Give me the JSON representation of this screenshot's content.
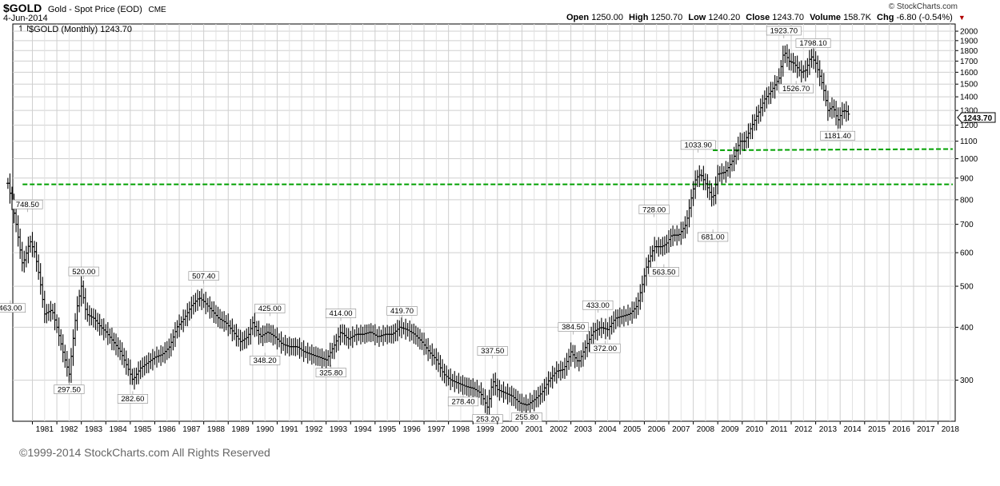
{
  "header": {
    "symbol": "$GOLD",
    "name": "Gold - Spot Price (EOD)",
    "exchange": "CME",
    "date": "4-Jun-2014",
    "brand": "© StockCharts.com",
    "open_label": "Open",
    "open": "1250.00",
    "high_label": "High",
    "high": "1250.70",
    "low_label": "Low",
    "low": "1240.20",
    "close_label": "Close",
    "close": "1243.70",
    "volume_label": "Volume",
    "volume": "158.7K",
    "chg_label": "Chg",
    "chg": "-6.80 (-0.54%)",
    "chg_color": "#b00000"
  },
  "footer": {
    "copyright": "©1999-2014 StockCharts.com All Rights Reserved"
  },
  "chart_data": {
    "type": "bar",
    "legend": "$GOLD (Monthly) 1243.70",
    "last_value": "1243.70",
    "y_scale": "log",
    "ylim": [
      240,
      2080
    ],
    "xlim": [
      1980.2,
      2018.7
    ],
    "grid": true,
    "y_ticks": [
      300,
      400,
      500,
      600,
      700,
      800,
      900,
      1000,
      1100,
      1200,
      1300,
      1400,
      1500,
      1600,
      1700,
      1800,
      1900,
      2000
    ],
    "x_ticks": [
      "1981",
      "1982",
      "1983",
      "1984",
      "1985",
      "1986",
      "1987",
      "1988",
      "1989",
      "1990",
      "1991",
      "1992",
      "1993",
      "1994",
      "1995",
      "1996",
      "1997",
      "1998",
      "1999",
      "2000",
      "2001",
      "2002",
      "2003",
      "2004",
      "2005",
      "2006",
      "2007",
      "2008",
      "2009",
      "2010",
      "2011",
      "2012",
      "2013",
      "2014",
      "2015",
      "2016",
      "2017",
      "2018"
    ],
    "series": [
      {
        "values": [
          [
            1980.0,
            875
          ],
          [
            1980.3,
            720
          ],
          [
            1980.6,
            560
          ],
          [
            1980.9,
            640
          ],
          [
            1981.1,
            600
          ],
          [
            1981.3,
            520
          ],
          [
            1981.5,
            430
          ],
          [
            1981.8,
            440
          ],
          [
            1982.0,
            400
          ],
          [
            1982.3,
            340
          ],
          [
            1982.5,
            310
          ],
          [
            1982.8,
            440
          ],
          [
            1983.0,
            500
          ],
          [
            1983.2,
            430
          ],
          [
            1983.5,
            420
          ],
          [
            1983.8,
            400
          ],
          [
            1984.0,
            390
          ],
          [
            1984.3,
            370
          ],
          [
            1984.6,
            350
          ],
          [
            1984.9,
            320
          ],
          [
            1985.1,
            300
          ],
          [
            1985.4,
            320
          ],
          [
            1985.7,
            330
          ],
          [
            1986.0,
            340
          ],
          [
            1986.3,
            345
          ],
          [
            1986.6,
            360
          ],
          [
            1986.9,
            400
          ],
          [
            1987.2,
            420
          ],
          [
            1987.5,
            450
          ],
          [
            1987.8,
            470
          ],
          [
            1988.0,
            460
          ],
          [
            1988.3,
            440
          ],
          [
            1988.6,
            420
          ],
          [
            1988.9,
            410
          ],
          [
            1989.2,
            390
          ],
          [
            1989.5,
            370
          ],
          [
            1989.8,
            380
          ],
          [
            1990.0,
            410
          ],
          [
            1990.3,
            380
          ],
          [
            1990.6,
            390
          ],
          [
            1990.9,
            380
          ],
          [
            1991.2,
            365
          ],
          [
            1991.5,
            360
          ],
          [
            1991.8,
            360
          ],
          [
            1992.1,
            350
          ],
          [
            1992.4,
            345
          ],
          [
            1992.7,
            340
          ],
          [
            1993.0,
            335
          ],
          [
            1993.3,
            360
          ],
          [
            1993.6,
            390
          ],
          [
            1993.9,
            375
          ],
          [
            1994.2,
            385
          ],
          [
            1994.5,
            385
          ],
          [
            1994.8,
            390
          ],
          [
            1995.1,
            380
          ],
          [
            1995.4,
            385
          ],
          [
            1995.7,
            385
          ],
          [
            1996.0,
            400
          ],
          [
            1996.3,
            395
          ],
          [
            1996.6,
            385
          ],
          [
            1996.9,
            370
          ],
          [
            1997.2,
            350
          ],
          [
            1997.5,
            335
          ],
          [
            1997.8,
            310
          ],
          [
            1998.1,
            300
          ],
          [
            1998.4,
            295
          ],
          [
            1998.7,
            290
          ],
          [
            1999.0,
            287
          ],
          [
            1999.3,
            280
          ],
          [
            1999.6,
            258
          ],
          [
            1999.8,
            300
          ],
          [
            2000.0,
            285
          ],
          [
            2000.3,
            280
          ],
          [
            2000.6,
            275
          ],
          [
            2000.9,
            265
          ],
          [
            2001.2,
            262
          ],
          [
            2001.5,
            270
          ],
          [
            2001.8,
            280
          ],
          [
            2002.1,
            300
          ],
          [
            2002.4,
            315
          ],
          [
            2002.7,
            318
          ],
          [
            2003.0,
            350
          ],
          [
            2003.3,
            330
          ],
          [
            2003.6,
            360
          ],
          [
            2003.9,
            390
          ],
          [
            2004.2,
            400
          ],
          [
            2004.5,
            395
          ],
          [
            2004.8,
            420
          ],
          [
            2005.1,
            425
          ],
          [
            2005.4,
            430
          ],
          [
            2005.7,
            450
          ],
          [
            2005.9,
            500
          ],
          [
            2006.1,
            560
          ],
          [
            2006.4,
            620
          ],
          [
            2006.7,
            620
          ],
          [
            2006.9,
            630
          ],
          [
            2007.1,
            660
          ],
          [
            2007.4,
            660
          ],
          [
            2007.7,
            700
          ],
          [
            2007.9,
            800
          ],
          [
            2008.1,
            900
          ],
          [
            2008.3,
            920
          ],
          [
            2008.6,
            850
          ],
          [
            2008.8,
            800
          ],
          [
            2009.0,
            920
          ],
          [
            2009.3,
            930
          ],
          [
            2009.6,
            990
          ],
          [
            2009.9,
            1100
          ],
          [
            2010.1,
            1100
          ],
          [
            2010.4,
            1200
          ],
          [
            2010.7,
            1300
          ],
          [
            2010.9,
            1380
          ],
          [
            2011.2,
            1450
          ],
          [
            2011.5,
            1550
          ],
          [
            2011.7,
            1800
          ],
          [
            2011.9,
            1700
          ],
          [
            2012.1,
            1680
          ],
          [
            2012.4,
            1600
          ],
          [
            2012.6,
            1620
          ],
          [
            2012.8,
            1750
          ],
          [
            2013.0,
            1680
          ],
          [
            2013.3,
            1480
          ],
          [
            2013.5,
            1300
          ],
          [
            2013.7,
            1330
          ],
          [
            2013.9,
            1230
          ],
          [
            2014.1,
            1300
          ],
          [
            2014.3,
            1290
          ],
          [
            2014.4,
            1243.7
          ]
        ]
      }
    ],
    "annotations": [
      {
        "x": 1980.1,
        "y": 463,
        "label": "463.00"
      },
      {
        "x": 1980.8,
        "y": 748.5,
        "label": "748.50"
      },
      {
        "x": 1982.5,
        "y": 297.5,
        "label": "297.50"
      },
      {
        "x": 1983.1,
        "y": 520,
        "label": "520.00"
      },
      {
        "x": 1985.1,
        "y": 282.6,
        "label": "282.60"
      },
      {
        "x": 1988.0,
        "y": 507.4,
        "label": "507.40"
      },
      {
        "x": 1990.5,
        "y": 348.2,
        "label": "348.20"
      },
      {
        "x": 1990.7,
        "y": 425,
        "label": "425.00"
      },
      {
        "x": 1993.2,
        "y": 325.8,
        "label": "325.80"
      },
      {
        "x": 1993.6,
        "y": 414,
        "label": "414.00"
      },
      {
        "x": 1996.1,
        "y": 419.7,
        "label": "419.70"
      },
      {
        "x": 1998.6,
        "y": 278.4,
        "label": "278.40"
      },
      {
        "x": 1999.6,
        "y": 253.2,
        "label": "253.20"
      },
      {
        "x": 1999.8,
        "y": 337.5,
        "label": "337.50"
      },
      {
        "x": 2001.2,
        "y": 255.8,
        "label": "255.80"
      },
      {
        "x": 2003.1,
        "y": 384.5,
        "label": "384.50"
      },
      {
        "x": 2004.1,
        "y": 433,
        "label": "433.00"
      },
      {
        "x": 2004.4,
        "y": 372,
        "label": "372.00"
      },
      {
        "x": 2006.4,
        "y": 728,
        "label": "728.00"
      },
      {
        "x": 2006.8,
        "y": 563.5,
        "label": "563.50"
      },
      {
        "x": 2008.2,
        "y": 1033.9,
        "label": "1033.90"
      },
      {
        "x": 2008.8,
        "y": 681,
        "label": "681.00"
      },
      {
        "x": 2011.7,
        "y": 1923.7,
        "label": "1923.70"
      },
      {
        "x": 2012.2,
        "y": 1526.7,
        "label": "1526.70"
      },
      {
        "x": 2012.9,
        "y": 1798.1,
        "label": "1798.10"
      },
      {
        "x": 2013.9,
        "y": 1181.4,
        "label": "1181.40"
      }
    ],
    "reference_lines": [
      {
        "x1": 1980.6,
        "y1": 870,
        "x2": 2018.6,
        "y2": 870,
        "color": "#00a000"
      },
      {
        "x1": 2008.8,
        "y1": 1047,
        "x2": 2018.6,
        "y2": 1054,
        "color": "#00a000"
      }
    ]
  }
}
